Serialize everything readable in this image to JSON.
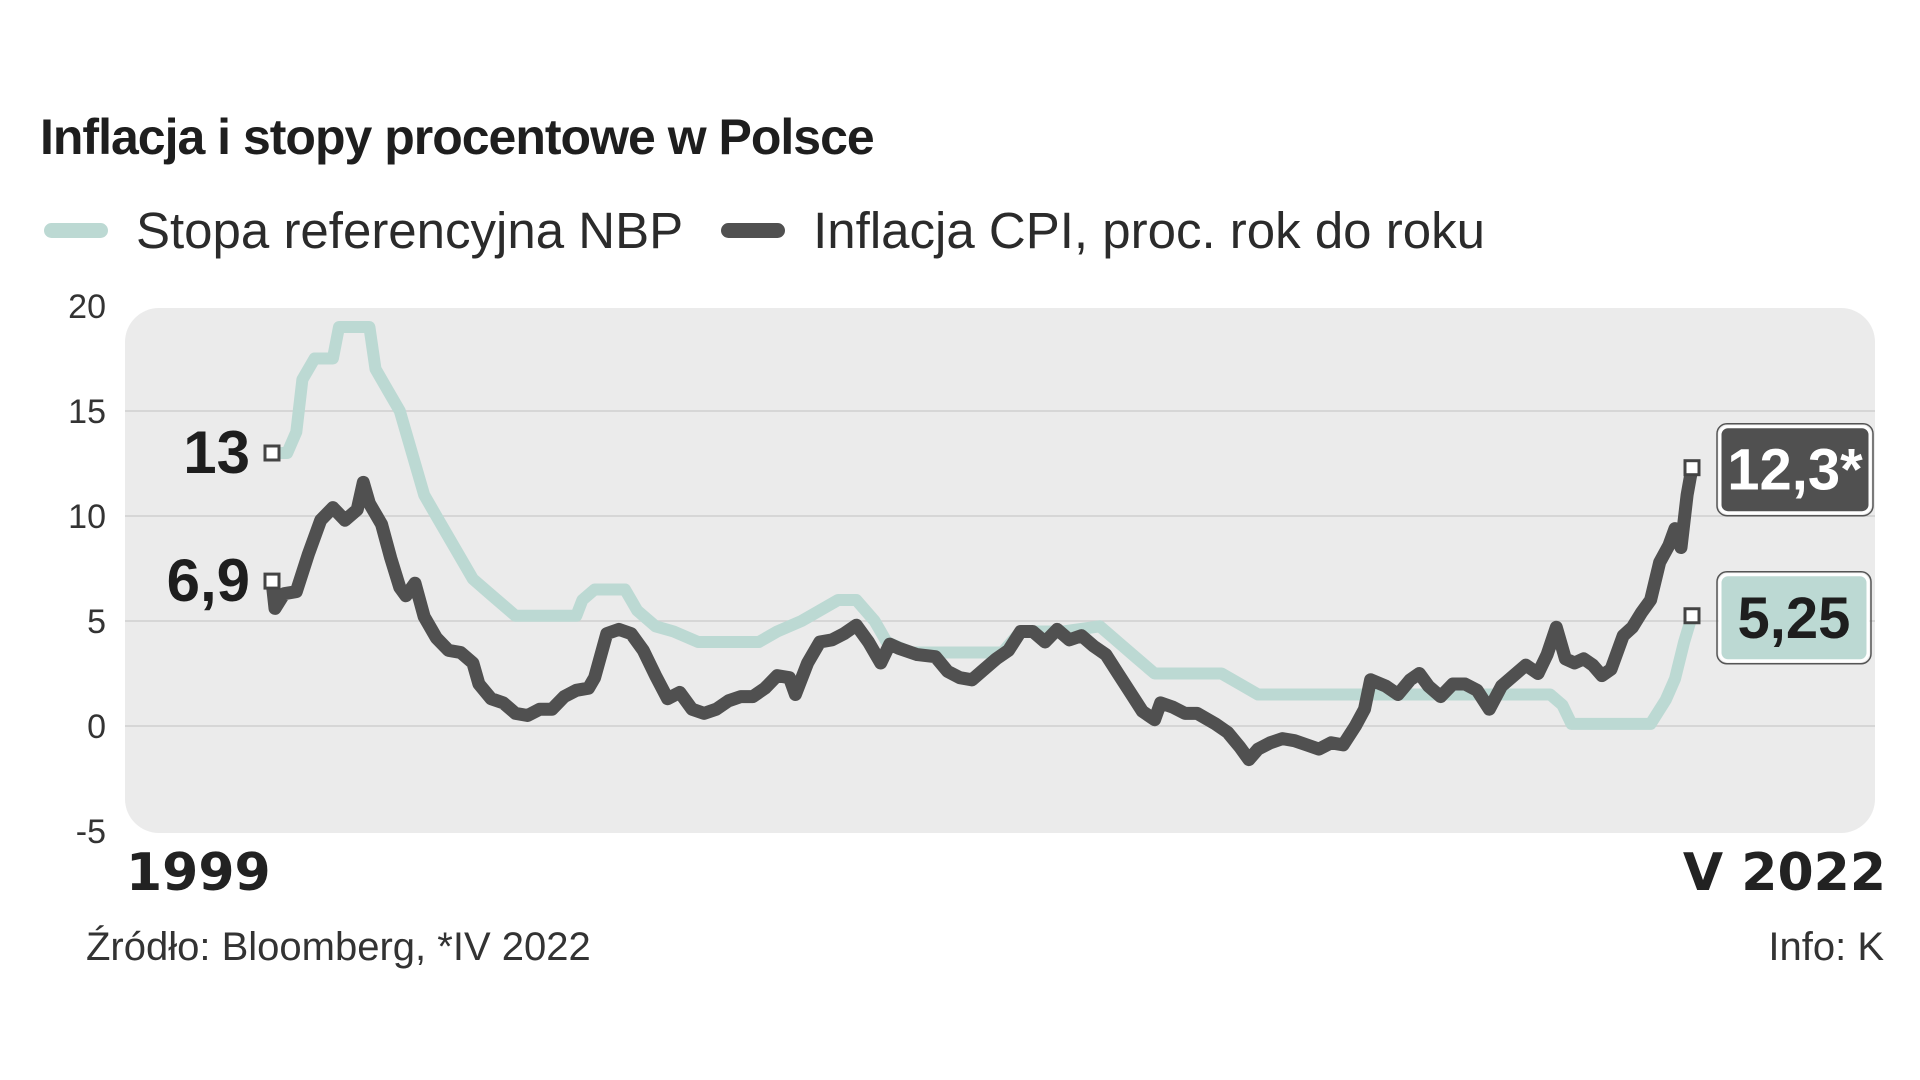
{
  "header": {
    "title": "Inflacja i stopy procentowe w Polsce"
  },
  "colors": {
    "rate": "#bcd9d3",
    "cpi": "#505050",
    "panel": "#ebebeb"
  },
  "chart_data": {
    "type": "line",
    "title": "Inflacja i stopy procentowe w Polsce",
    "xlabel": "",
    "ylabel": "",
    "x_range": [
      1999.0,
      2022.33
    ],
    "ylim": [
      -5,
      20
    ],
    "y_ticks": [
      20,
      15,
      10,
      5,
      0,
      -5
    ],
    "x_tick_labels": [
      "1999",
      "V 2022"
    ],
    "grid": true,
    "legend": "top-left",
    "series": [
      {
        "name": "Stopa referencyjna NBP",
        "color": "#bcd9d3",
        "points": [
          [
            1999.0,
            13.0
          ],
          [
            1999.25,
            13.0
          ],
          [
            1999.4,
            14.0
          ],
          [
            1999.5,
            16.5
          ],
          [
            1999.7,
            17.5
          ],
          [
            1999.9,
            17.5
          ],
          [
            2000.0,
            17.5
          ],
          [
            2000.1,
            19.0
          ],
          [
            2000.6,
            19.0
          ],
          [
            2000.7,
            17.0
          ],
          [
            2000.9,
            16.0
          ],
          [
            2001.1,
            15.0
          ],
          [
            2001.3,
            13.0
          ],
          [
            2001.5,
            11.0
          ],
          [
            2001.7,
            10.0
          ],
          [
            2002.0,
            8.5
          ],
          [
            2002.3,
            7.0
          ],
          [
            2002.6,
            6.25
          ],
          [
            2003.0,
            5.25
          ],
          [
            2003.6,
            5.25
          ],
          [
            2004.0,
            5.25
          ],
          [
            2004.1,
            6.0
          ],
          [
            2004.3,
            6.5
          ],
          [
            2004.8,
            6.5
          ],
          [
            2005.0,
            5.5
          ],
          [
            2005.3,
            4.75
          ],
          [
            2005.6,
            4.5
          ],
          [
            2006.0,
            4.0
          ],
          [
            2006.5,
            4.0
          ],
          [
            2007.0,
            4.0
          ],
          [
            2007.3,
            4.5
          ],
          [
            2007.7,
            5.0
          ],
          [
            2008.0,
            5.5
          ],
          [
            2008.3,
            6.0
          ],
          [
            2008.6,
            6.0
          ],
          [
            2008.9,
            5.0
          ],
          [
            2009.1,
            4.0
          ],
          [
            2009.5,
            3.5
          ],
          [
            2010.0,
            3.5
          ],
          [
            2011.0,
            3.5
          ],
          [
            2011.3,
            4.5
          ],
          [
            2012.0,
            4.5
          ],
          [
            2012.6,
            4.75
          ],
          [
            2012.9,
            4.0
          ],
          [
            2013.2,
            3.25
          ],
          [
            2013.5,
            2.5
          ],
          [
            2014.0,
            2.5
          ],
          [
            2014.6,
            2.5
          ],
          [
            2014.9,
            2.0
          ],
          [
            2015.2,
            1.5
          ],
          [
            2016.0,
            1.5
          ],
          [
            2017.0,
            1.5
          ],
          [
            2018.0,
            1.5
          ],
          [
            2019.0,
            1.5
          ],
          [
            2020.0,
            1.5
          ],
          [
            2020.2,
            1.0
          ],
          [
            2020.35,
            0.1
          ],
          [
            2021.0,
            0.1
          ],
          [
            2021.65,
            0.1
          ],
          [
            2021.9,
            1.25
          ],
          [
            2022.05,
            2.25
          ],
          [
            2022.2,
            4.0
          ],
          [
            2022.33,
            5.25
          ]
        ]
      },
      {
        "name": "Inflacja CPI, proc. rok do roku",
        "color": "#505050",
        "points": [
          [
            1999.0,
            6.9
          ],
          [
            1999.05,
            5.6
          ],
          [
            1999.2,
            6.3
          ],
          [
            1999.4,
            6.4
          ],
          [
            1999.6,
            8.2
          ],
          [
            1999.8,
            9.8
          ],
          [
            2000.0,
            10.4
          ],
          [
            2000.2,
            9.8
          ],
          [
            2000.4,
            10.3
          ],
          [
            2000.5,
            11.6
          ],
          [
            2000.6,
            10.6
          ],
          [
            2000.8,
            9.6
          ],
          [
            2000.95,
            8.0
          ],
          [
            2001.1,
            6.6
          ],
          [
            2001.2,
            6.2
          ],
          [
            2001.35,
            6.8
          ],
          [
            2001.5,
            5.2
          ],
          [
            2001.7,
            4.2
          ],
          [
            2001.9,
            3.6
          ],
          [
            2002.1,
            3.5
          ],
          [
            2002.3,
            3.0
          ],
          [
            2002.4,
            2.0
          ],
          [
            2002.6,
            1.3
          ],
          [
            2002.8,
            1.1
          ],
          [
            2003.0,
            0.6
          ],
          [
            2003.2,
            0.5
          ],
          [
            2003.4,
            0.8
          ],
          [
            2003.6,
            0.8
          ],
          [
            2003.8,
            1.4
          ],
          [
            2004.0,
            1.7
          ],
          [
            2004.2,
            1.8
          ],
          [
            2004.3,
            2.3
          ],
          [
            2004.5,
            4.4
          ],
          [
            2004.7,
            4.6
          ],
          [
            2004.9,
            4.4
          ],
          [
            2005.1,
            3.6
          ],
          [
            2005.3,
            2.4
          ],
          [
            2005.5,
            1.3
          ],
          [
            2005.7,
            1.6
          ],
          [
            2005.9,
            0.8
          ],
          [
            2006.1,
            0.6
          ],
          [
            2006.3,
            0.8
          ],
          [
            2006.5,
            1.2
          ],
          [
            2006.7,
            1.4
          ],
          [
            2006.9,
            1.4
          ],
          [
            2007.1,
            1.8
          ],
          [
            2007.3,
            2.4
          ],
          [
            2007.5,
            2.3
          ],
          [
            2007.6,
            1.5
          ],
          [
            2007.8,
            3.0
          ],
          [
            2008.0,
            4.0
          ],
          [
            2008.2,
            4.1
          ],
          [
            2008.4,
            4.4
          ],
          [
            2008.6,
            4.8
          ],
          [
            2008.8,
            4.0
          ],
          [
            2009.0,
            3.0
          ],
          [
            2009.15,
            3.9
          ],
          [
            2009.3,
            3.7
          ],
          [
            2009.6,
            3.4
          ],
          [
            2009.9,
            3.3
          ],
          [
            2010.1,
            2.6
          ],
          [
            2010.3,
            2.3
          ],
          [
            2010.5,
            2.2
          ],
          [
            2010.7,
            2.7
          ],
          [
            2010.9,
            3.2
          ],
          [
            2011.1,
            3.6
          ],
          [
            2011.3,
            4.5
          ],
          [
            2011.5,
            4.5
          ],
          [
            2011.7,
            4.0
          ],
          [
            2011.9,
            4.6
          ],
          [
            2012.1,
            4.1
          ],
          [
            2012.3,
            4.3
          ],
          [
            2012.5,
            3.8
          ],
          [
            2012.7,
            3.4
          ],
          [
            2012.9,
            2.5
          ],
          [
            2013.1,
            1.6
          ],
          [
            2013.3,
            0.7
          ],
          [
            2013.5,
            0.3
          ],
          [
            2013.6,
            1.1
          ],
          [
            2013.8,
            0.9
          ],
          [
            2014.0,
            0.6
          ],
          [
            2014.2,
            0.6
          ],
          [
            2014.5,
            0.1
          ],
          [
            2014.7,
            -0.3
          ],
          [
            2014.9,
            -1.0
          ],
          [
            2015.05,
            -1.6
          ],
          [
            2015.2,
            -1.1
          ],
          [
            2015.4,
            -0.8
          ],
          [
            2015.6,
            -0.6
          ],
          [
            2015.8,
            -0.7
          ],
          [
            2016.0,
            -0.9
          ],
          [
            2016.2,
            -1.1
          ],
          [
            2016.4,
            -0.8
          ],
          [
            2016.6,
            -0.9
          ],
          [
            2016.8,
            0.0
          ],
          [
            2016.95,
            0.8
          ],
          [
            2017.05,
            2.2
          ],
          [
            2017.3,
            1.9
          ],
          [
            2017.5,
            1.5
          ],
          [
            2017.7,
            2.2
          ],
          [
            2017.85,
            2.5
          ],
          [
            2018.0,
            1.9
          ],
          [
            2018.2,
            1.4
          ],
          [
            2018.4,
            2.0
          ],
          [
            2018.6,
            2.0
          ],
          [
            2018.8,
            1.7
          ],
          [
            2019.0,
            0.8
          ],
          [
            2019.2,
            1.9
          ],
          [
            2019.4,
            2.4
          ],
          [
            2019.6,
            2.9
          ],
          [
            2019.8,
            2.5
          ],
          [
            2019.95,
            3.4
          ],
          [
            2020.1,
            4.7
          ],
          [
            2020.25,
            3.2
          ],
          [
            2020.4,
            3.0
          ],
          [
            2020.55,
            3.2
          ],
          [
            2020.7,
            2.9
          ],
          [
            2020.85,
            2.4
          ],
          [
            2021.0,
            2.7
          ],
          [
            2021.2,
            4.3
          ],
          [
            2021.35,
            4.7
          ],
          [
            2021.5,
            5.4
          ],
          [
            2021.65,
            6.0
          ],
          [
            2021.8,
            7.8
          ],
          [
            2021.95,
            8.6
          ],
          [
            2022.05,
            9.4
          ],
          [
            2022.15,
            8.5
          ],
          [
            2022.25,
            11.0
          ],
          [
            2022.33,
            12.3
          ]
        ]
      }
    ],
    "annotations": [
      {
        "series": 0,
        "position": "start",
        "label": "13"
      },
      {
        "series": 1,
        "position": "start",
        "label": "6,9"
      },
      {
        "series": 1,
        "position": "end",
        "label": "12,3*"
      },
      {
        "series": 0,
        "position": "end",
        "label": "5,25"
      }
    ]
  },
  "footer": {
    "source": "Źródło: Bloomberg, *IV 2022",
    "credit": "Info: K"
  }
}
